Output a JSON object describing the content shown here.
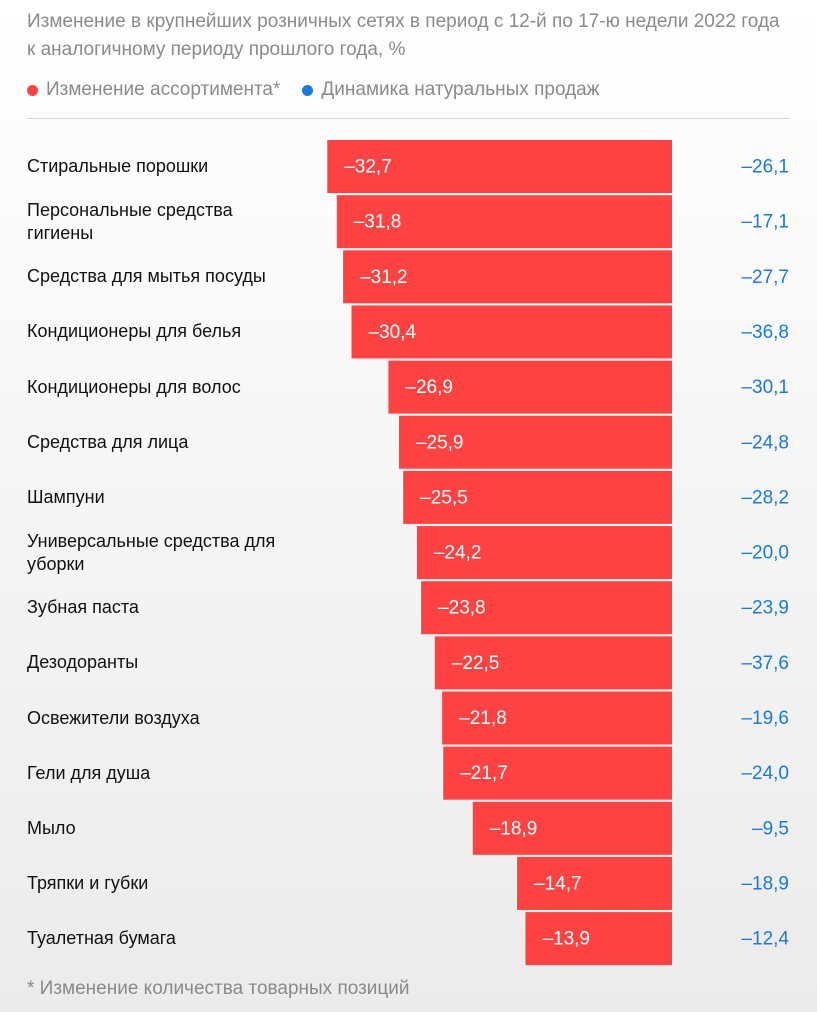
{
  "chart_data": {
    "type": "bar",
    "orientation": "horizontal",
    "title": "Изменение в крупнейших розничных сетях в период с 12-й по 17-ю недели 2022 года к аналогичному периоду прошлого года, %",
    "categories": [
      "Стиральные порошки",
      "Персональные средства гигиены",
      "Средства для мытья посуды",
      "Кондиционеры для белья",
      "Кондиционеры для волос",
      "Средства для лица",
      "Шампуни",
      "Универсальные средства для уборки",
      "Зубная паста",
      "Дезодоранты",
      "Освежители воздуха",
      "Гели для душа",
      "Мыло",
      "Тряпки и губки",
      "Туалетная бумага"
    ],
    "series": [
      {
        "name": "Изменение ассортимента*",
        "color": "#ff4343",
        "display": "bar",
        "values": [
          -32.7,
          -31.8,
          -31.2,
          -30.4,
          -26.9,
          -25.9,
          -25.5,
          -24.2,
          -23.8,
          -22.5,
          -21.8,
          -21.7,
          -18.9,
          -14.7,
          -13.9
        ],
        "value_labels": [
          "–32,7",
          "–31,8",
          "–31,2",
          "–30,4",
          "–26,9",
          "–25,9",
          "–25,5",
          "–24,2",
          "–23,8",
          "–22,5",
          "–21,8",
          "–21,7",
          "–18,9",
          "–14,7",
          "–13,9"
        ]
      },
      {
        "name": "Динамика натуральных продаж",
        "color": "#1a7ad9",
        "display": "text",
        "values": [
          -26.1,
          -17.1,
          -27.7,
          -36.8,
          -30.1,
          -24.8,
          -28.2,
          -20.0,
          -23.9,
          -37.6,
          -19.6,
          -24.0,
          -9.5,
          -18.9,
          -12.4
        ],
        "value_labels": [
          "–26,1",
          "–17,1",
          "–27,7",
          "–36,8",
          "–30,1",
          "–24,8",
          "–28,2",
          "–20,0",
          "–23,9",
          "–37,6",
          "–19,6",
          "–24,0",
          "–9,5",
          "–18,9",
          "–12,4"
        ]
      }
    ],
    "xlim": [
      -35,
      0
    ],
    "note": "* Изменение количества товарных позиций"
  }
}
